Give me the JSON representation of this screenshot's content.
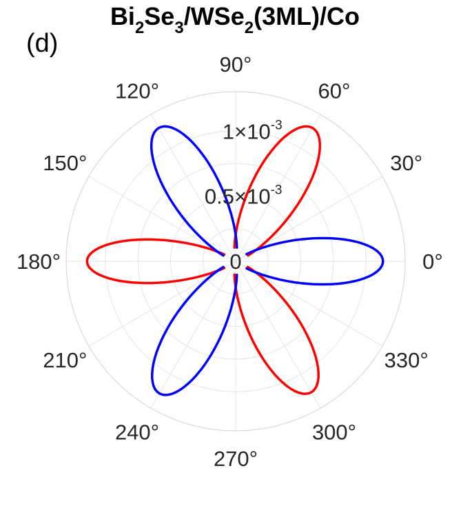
{
  "title": {
    "base1": "Bi",
    "sub1": "2",
    "base2": "Se",
    "sub2": "3",
    "base3": "/WSe",
    "sub3": "2",
    "base4": "(3ML)/Co"
  },
  "panel_label": "(d)",
  "chart_data": {
    "type": "polar",
    "title": "Bi2Se3/WSe2(3ML)/Co",
    "panel": "(d)",
    "theta_unit": "deg",
    "r_range": [
      0,
      0.0013
    ],
    "r_ticks": [
      {
        "value": 0,
        "label": "0",
        "mantissa": "",
        "exponent": ""
      },
      {
        "value": 0.0005,
        "label": "0.5×10^-3",
        "mantissa": "0.5×10",
        "exponent": "-3"
      },
      {
        "value": 0.001,
        "label": "1×10^-3",
        "mantissa": "1×10",
        "exponent": "-3"
      }
    ],
    "theta_ticks": [
      0,
      30,
      60,
      90,
      120,
      150,
      180,
      210,
      240,
      270,
      300,
      330
    ],
    "theta_labels": [
      "0°",
      "30°",
      "60°",
      "90°",
      "120°",
      "150°",
      "180°",
      "210°",
      "240°",
      "270°",
      "300°",
      "330°"
    ],
    "grid": true,
    "series": [
      {
        "color": "#ff0000",
        "lobes": [
          {
            "center": 60,
            "peak": 0.00118,
            "width": 16
          },
          {
            "center": 180,
            "peak": 0.00114,
            "width": 14
          },
          {
            "center": 300,
            "peak": 0.00116,
            "width": 16
          }
        ]
      },
      {
        "color": "#0000ff",
        "lobes": [
          {
            "center": 0,
            "peak": 0.00113,
            "width": 15
          },
          {
            "center": 120,
            "peak": 0.00118,
            "width": 16
          },
          {
            "center": 240,
            "peak": 0.00117,
            "width": 16
          }
        ]
      }
    ]
  }
}
